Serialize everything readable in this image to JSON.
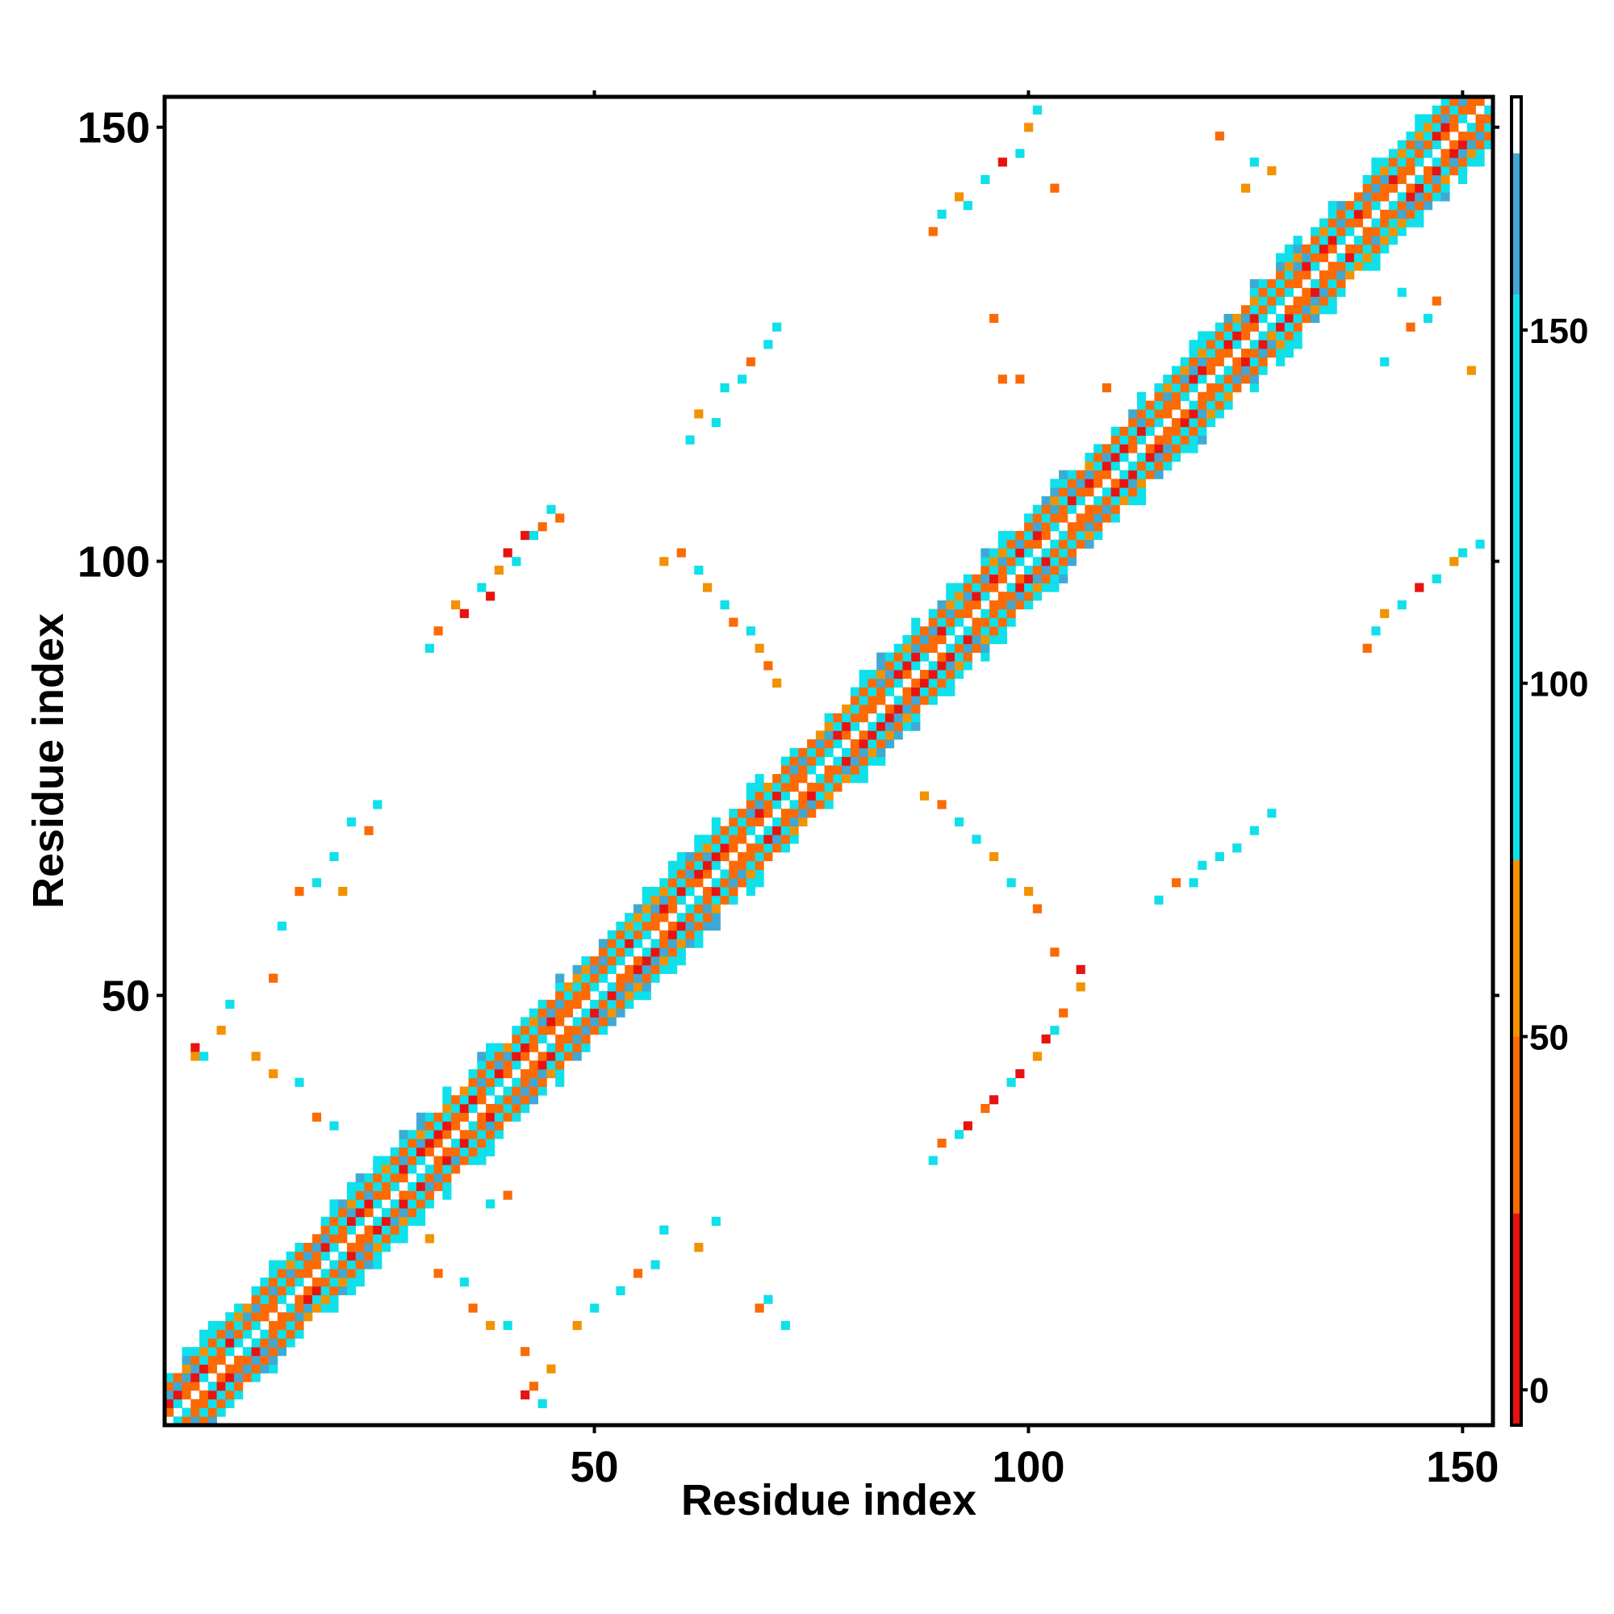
{
  "chart_data": {
    "type": "heatmap",
    "title": "",
    "xlabel": "Residue index",
    "ylabel": "Residue index",
    "xlim": [
      1,
      153
    ],
    "ylim": [
      1,
      153
    ],
    "xticks": [
      50,
      100,
      150
    ],
    "yticks": [
      50,
      100,
      150
    ],
    "colorbar": {
      "ticks": [
        0,
        50,
        100,
        150
      ],
      "range": [
        -5,
        183
      ],
      "bands": [
        {
          "from": -5,
          "to": 25,
          "color": "#e8130f"
        },
        {
          "from": 25,
          "to": 50,
          "color": "#fb6a05"
        },
        {
          "from": 50,
          "to": 75,
          "color": "#f39200"
        },
        {
          "from": 75,
          "to": 155,
          "color": "#0fe0ea"
        },
        {
          "from": 155,
          "to": 175,
          "color": "#3fa9d4"
        },
        {
          "from": 175,
          "to": 183,
          "color": "#ffffff"
        }
      ]
    },
    "diagonal": {
      "start": 1,
      "end": 153,
      "halfwidth_min": 4,
      "halfwidth_max": 6
    },
    "offdiagonal_contacts": [
      {
        "i": 4,
        "j": 44,
        "v": 10
      },
      {
        "i": 4,
        "j": 43,
        "v": 60
      },
      {
        "i": 5,
        "j": 43,
        "v": 90
      },
      {
        "i": 7,
        "j": 46,
        "v": 55
      },
      {
        "i": 8,
        "j": 49,
        "v": 95
      },
      {
        "i": 11,
        "j": 43,
        "v": 55
      },
      {
        "i": 13,
        "j": 41,
        "v": 55
      },
      {
        "i": 13,
        "j": 52,
        "v": 40
      },
      {
        "i": 14,
        "j": 58,
        "v": 95
      },
      {
        "i": 16,
        "j": 40,
        "v": 90
      },
      {
        "i": 16,
        "j": 62,
        "v": 40
      },
      {
        "i": 18,
        "j": 36,
        "v": 40
      },
      {
        "i": 18,
        "j": 63,
        "v": 95
      },
      {
        "i": 20,
        "j": 35,
        "v": 95
      },
      {
        "i": 20,
        "j": 66,
        "v": 90
      },
      {
        "i": 21,
        "j": 62,
        "v": 55
      },
      {
        "i": 22,
        "j": 70,
        "v": 95
      },
      {
        "i": 24,
        "j": 69,
        "v": 40
      },
      {
        "i": 25,
        "j": 72,
        "v": 95
      },
      {
        "i": 31,
        "j": 22,
        "v": 55
      },
      {
        "i": 32,
        "j": 18,
        "v": 40
      },
      {
        "i": 35,
        "j": 17,
        "v": 90
      },
      {
        "i": 36,
        "j": 14,
        "v": 40
      },
      {
        "i": 38,
        "j": 12,
        "v": 55
      },
      {
        "i": 40,
        "j": 12,
        "v": 90
      },
      {
        "i": 42,
        "j": 9,
        "v": 40
      },
      {
        "i": 42,
        "j": 4,
        "v": 10
      },
      {
        "i": 43,
        "j": 5,
        "v": 40
      },
      {
        "i": 44,
        "j": 3,
        "v": 90
      },
      {
        "i": 45,
        "j": 7,
        "v": 55
      },
      {
        "i": 48,
        "j": 12,
        "v": 55
      },
      {
        "i": 50,
        "j": 14,
        "v": 90
      },
      {
        "i": 53,
        "j": 16,
        "v": 90
      },
      {
        "i": 55,
        "j": 18,
        "v": 40
      },
      {
        "i": 57,
        "j": 19,
        "v": 95
      },
      {
        "i": 58,
        "j": 23,
        "v": 95
      },
      {
        "i": 62,
        "j": 21,
        "v": 55
      },
      {
        "i": 64,
        "j": 24,
        "v": 90
      },
      {
        "i": 31,
        "j": 90,
        "v": 95
      },
      {
        "i": 32,
        "j": 92,
        "v": 40
      },
      {
        "i": 34,
        "j": 95,
        "v": 55
      },
      {
        "i": 35,
        "j": 94,
        "v": 10
      },
      {
        "i": 37,
        "j": 97,
        "v": 95
      },
      {
        "i": 38,
        "j": 96,
        "v": 10
      },
      {
        "i": 39,
        "j": 99,
        "v": 55
      },
      {
        "i": 40,
        "j": 101,
        "v": 10
      },
      {
        "i": 41,
        "j": 100,
        "v": 95
      },
      {
        "i": 42,
        "j": 103,
        "v": 10
      },
      {
        "i": 43,
        "j": 103,
        "v": 90
      },
      {
        "i": 44,
        "j": 104,
        "v": 40
      },
      {
        "i": 45,
        "j": 106,
        "v": 95
      },
      {
        "i": 46,
        "j": 105,
        "v": 40
      },
      {
        "i": 89,
        "j": 31,
        "v": 95
      },
      {
        "i": 90,
        "j": 33,
        "v": 40
      },
      {
        "i": 92,
        "j": 34,
        "v": 95
      },
      {
        "i": 93,
        "j": 35,
        "v": 10
      },
      {
        "i": 95,
        "j": 37,
        "v": 40
      },
      {
        "i": 96,
        "j": 38,
        "v": 10
      },
      {
        "i": 98,
        "j": 40,
        "v": 95
      },
      {
        "i": 99,
        "j": 41,
        "v": 10
      },
      {
        "i": 101,
        "j": 43,
        "v": 55
      },
      {
        "i": 102,
        "j": 45,
        "v": 10
      },
      {
        "i": 103,
        "j": 46,
        "v": 95
      },
      {
        "i": 104,
        "j": 48,
        "v": 40
      },
      {
        "i": 106,
        "j": 51,
        "v": 55
      },
      {
        "i": 106,
        "j": 53,
        "v": 10
      },
      {
        "i": 103,
        "j": 55,
        "v": 40
      },
      {
        "i": 101,
        "j": 60,
        "v": 40
      },
      {
        "i": 100,
        "j": 62,
        "v": 55
      },
      {
        "i": 98,
        "j": 63,
        "v": 95
      },
      {
        "i": 96,
        "j": 66,
        "v": 55
      },
      {
        "i": 94,
        "j": 68,
        "v": 95
      },
      {
        "i": 92,
        "j": 70,
        "v": 95
      },
      {
        "i": 90,
        "j": 72,
        "v": 40
      },
      {
        "i": 88,
        "j": 73,
        "v": 55
      },
      {
        "i": 58,
        "j": 100,
        "v": 55
      },
      {
        "i": 60,
        "j": 101,
        "v": 40
      },
      {
        "i": 62,
        "j": 99,
        "v": 95
      },
      {
        "i": 63,
        "j": 97,
        "v": 55
      },
      {
        "i": 65,
        "j": 95,
        "v": 90
      },
      {
        "i": 66,
        "j": 93,
        "v": 40
      },
      {
        "i": 68,
        "j": 92,
        "v": 95
      },
      {
        "i": 69,
        "j": 90,
        "v": 55
      },
      {
        "i": 70,
        "j": 88,
        "v": 40
      },
      {
        "i": 71,
        "j": 86,
        "v": 55
      },
      {
        "i": 61,
        "j": 114,
        "v": 95
      },
      {
        "i": 62,
        "j": 117,
        "v": 55
      },
      {
        "i": 64,
        "j": 116,
        "v": 95
      },
      {
        "i": 65,
        "j": 120,
        "v": 90
      },
      {
        "i": 67,
        "j": 121,
        "v": 95
      },
      {
        "i": 68,
        "j": 123,
        "v": 40
      },
      {
        "i": 70,
        "j": 125,
        "v": 95
      },
      {
        "i": 71,
        "j": 127,
        "v": 90
      },
      {
        "i": 115,
        "j": 61,
        "v": 95
      },
      {
        "i": 117,
        "j": 63,
        "v": 40
      },
      {
        "i": 119,
        "j": 63,
        "v": 95
      },
      {
        "i": 120,
        "j": 65,
        "v": 90
      },
      {
        "i": 122,
        "j": 66,
        "v": 95
      },
      {
        "i": 124,
        "j": 67,
        "v": 95
      },
      {
        "i": 126,
        "j": 69,
        "v": 90
      },
      {
        "i": 128,
        "j": 71,
        "v": 95
      },
      {
        "i": 89,
        "j": 138,
        "v": 40
      },
      {
        "i": 90,
        "j": 140,
        "v": 95
      },
      {
        "i": 92,
        "j": 142,
        "v": 55
      },
      {
        "i": 93,
        "j": 141,
        "v": 95
      },
      {
        "i": 95,
        "j": 144,
        "v": 95
      },
      {
        "i": 97,
        "j": 146,
        "v": 10
      },
      {
        "i": 99,
        "j": 147,
        "v": 95
      },
      {
        "i": 100,
        "j": 150,
        "v": 55
      },
      {
        "i": 101,
        "j": 152,
        "v": 95
      },
      {
        "i": 97,
        "j": 121,
        "v": 40
      },
      {
        "i": 103,
        "j": 143,
        "v": 40
      },
      {
        "i": 139,
        "j": 90,
        "v": 40
      },
      {
        "i": 140,
        "j": 92,
        "v": 95
      },
      {
        "i": 141,
        "j": 94,
        "v": 55
      },
      {
        "i": 143,
        "j": 95,
        "v": 95
      },
      {
        "i": 145,
        "j": 97,
        "v": 10
      },
      {
        "i": 147,
        "j": 98,
        "v": 95
      },
      {
        "i": 149,
        "j": 100,
        "v": 55
      },
      {
        "i": 150,
        "j": 101,
        "v": 95
      },
      {
        "i": 152,
        "j": 102,
        "v": 95
      },
      {
        "i": 130,
        "j": 127,
        "v": 95
      },
      {
        "i": 128,
        "j": 126,
        "v": 55
      },
      {
        "i": 130,
        "j": 124,
        "v": 95
      },
      {
        "i": 125,
        "j": 143,
        "v": 55
      },
      {
        "i": 126,
        "j": 146,
        "v": 95
      },
      {
        "i": 128,
        "j": 145,
        "v": 55
      },
      {
        "i": 122,
        "j": 149,
        "v": 40
      },
      {
        "i": 109,
        "j": 120,
        "v": 40
      },
      {
        "i": 144,
        "j": 127,
        "v": 40
      },
      {
        "i": 146,
        "j": 128,
        "v": 95
      },
      {
        "i": 147,
        "j": 130,
        "v": 40
      },
      {
        "i": 143,
        "j": 131,
        "v": 90
      },
      {
        "i": 141,
        "j": 123,
        "v": 95
      },
      {
        "i": 151,
        "j": 122,
        "v": 55
      },
      {
        "i": 96,
        "j": 128,
        "v": 40
      },
      {
        "i": 99,
        "j": 121,
        "v": 40
      },
      {
        "i": 72,
        "j": 12,
        "v": 95
      },
      {
        "i": 69,
        "j": 14,
        "v": 40
      },
      {
        "i": 70,
        "j": 15,
        "v": 95
      },
      {
        "i": 38,
        "j": 26,
        "v": 90
      },
      {
        "i": 40,
        "j": 27,
        "v": 40
      }
    ]
  }
}
